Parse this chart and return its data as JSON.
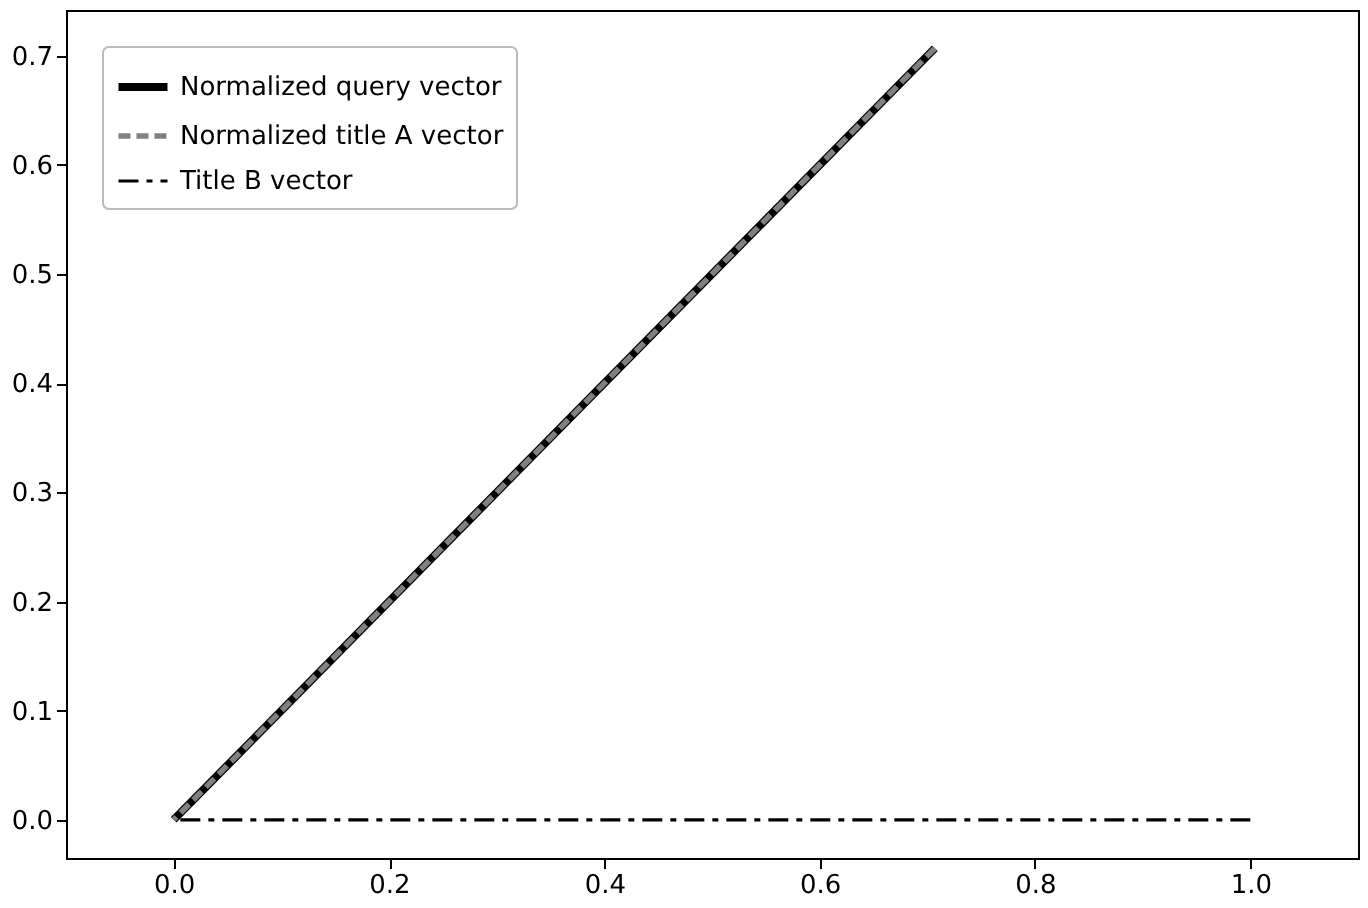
{
  "chart_data": {
    "type": "line",
    "legend": "top left",
    "grid": false,
    "marker": "none",
    "xlim": [
      -0.1,
      1.1
    ],
    "ylim": [
      -0.035,
      0.742
    ],
    "xticks": [
      {
        "value": 0,
        "label": "0.0"
      },
      {
        "value": 0.2,
        "label": "0.2"
      },
      {
        "value": 0.4,
        "label": "0.4"
      },
      {
        "value": 0.6,
        "label": "0.6"
      },
      {
        "value": 0.8,
        "label": "0.8"
      },
      {
        "value": 1,
        "label": "1.0"
      }
    ],
    "yticks": [
      {
        "value": 0,
        "label": "0.0"
      },
      0.1,
      0.2,
      0.3,
      0.4,
      0.5,
      0.6,
      0.7
    ],
    "series": [
      {
        "name": "Normalized query vector",
        "color": "#000000",
        "line_style": "solid",
        "x": [
          0,
          0.707
        ],
        "values": [
          0,
          0.707
        ]
      },
      {
        "name": "Normalized title A vector",
        "color": "#808080",
        "line_style": "dashed",
        "x": [
          0,
          0.707
        ],
        "values": [
          0,
          0.707
        ]
      },
      {
        "name": "Title B vector",
        "color": "#000000",
        "line_style": "dashdot",
        "x": [
          0,
          1
        ],
        "values": [
          0,
          0
        ]
      }
    ]
  }
}
